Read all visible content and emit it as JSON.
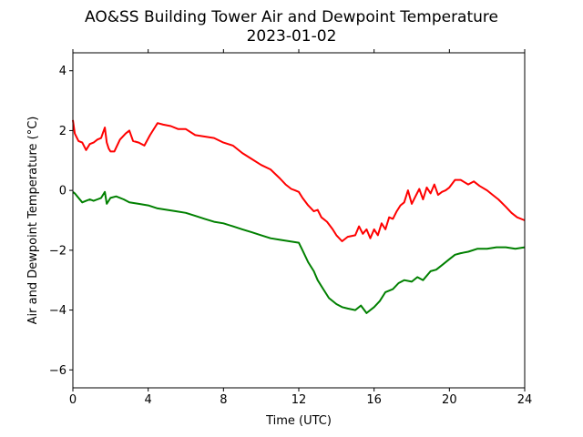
{
  "chart_data": {
    "type": "line",
    "title": "AO&SS Building Tower Air and Dewpoint Temperature",
    "subtitle": "2023-01-02",
    "xlabel": "Time (UTC)",
    "ylabel": "Air and Dewpoint Temperature (°C)",
    "xlim": [
      0,
      24
    ],
    "ylim": [
      -6.6,
      4.6
    ],
    "xticks": [
      0,
      4,
      8,
      12,
      16,
      20,
      24
    ],
    "yticks": [
      -6,
      -4,
      -2,
      0,
      2,
      4
    ],
    "ytick_labels": [
      "−6",
      "−4",
      "−2",
      "0",
      "2",
      "4"
    ],
    "grid": false,
    "series": [
      {
        "color": "#ff0000",
        "x": [
          0,
          0.1,
          0.3,
          0.5,
          0.7,
          0.9,
          1.1,
          1.3,
          1.5,
          1.7,
          1.8,
          1.9,
          2.0,
          2.2,
          2.5,
          2.8,
          3.0,
          3.2,
          3.5,
          3.8,
          4.1,
          4.4,
          4.5,
          4.8,
          5.2,
          5.6,
          6.0,
          6.5,
          7.0,
          7.5,
          8.0,
          8.5,
          9.0,
          9.5,
          10.0,
          10.5,
          11.0,
          11.3,
          11.6,
          11.8,
          12.0,
          12.2,
          12.5,
          12.8,
          13.0,
          13.2,
          13.5,
          13.8,
          14.0,
          14.3,
          14.6,
          15.0,
          15.2,
          15.4,
          15.6,
          15.8,
          16.0,
          16.2,
          16.4,
          16.6,
          16.8,
          17.0,
          17.2,
          17.4,
          17.6,
          17.8,
          18.0,
          18.2,
          18.4,
          18.6,
          18.8,
          19.0,
          19.2,
          19.4,
          19.6,
          19.8,
          20.0,
          20.3,
          20.6,
          21.0,
          21.3,
          21.6,
          22.0,
          22.3,
          22.6,
          23.0,
          23.3,
          23.6,
          24.0
        ],
        "values": [
          2.35,
          1.9,
          1.65,
          1.6,
          1.35,
          1.55,
          1.6,
          1.7,
          1.75,
          2.1,
          1.6,
          1.4,
          1.3,
          1.3,
          1.7,
          1.9,
          2.0,
          1.65,
          1.6,
          1.5,
          1.85,
          2.15,
          2.25,
          2.2,
          2.15,
          2.05,
          2.05,
          1.85,
          1.8,
          1.75,
          1.6,
          1.5,
          1.25,
          1.05,
          0.85,
          0.7,
          0.4,
          0.2,
          0.05,
          0.0,
          -0.05,
          -0.25,
          -0.5,
          -0.7,
          -0.65,
          -0.9,
          -1.05,
          -1.3,
          -1.5,
          -1.7,
          -1.55,
          -1.5,
          -1.2,
          -1.45,
          -1.3,
          -1.6,
          -1.3,
          -1.5,
          -1.1,
          -1.3,
          -0.9,
          -0.95,
          -0.7,
          -0.5,
          -0.4,
          0.0,
          -0.45,
          -0.2,
          0.05,
          -0.3,
          0.1,
          -0.1,
          0.2,
          -0.15,
          -0.05,
          0.0,
          0.1,
          0.35,
          0.35,
          0.2,
          0.3,
          0.15,
          0.0,
          -0.15,
          -0.3,
          -0.55,
          -0.75,
          -0.9,
          -1.0
        ]
      },
      {
        "color": "#008000",
        "x": [
          0,
          0.1,
          0.3,
          0.5,
          0.7,
          0.9,
          1.1,
          1.3,
          1.5,
          1.7,
          1.8,
          2.0,
          2.3,
          2.7,
          3.0,
          3.5,
          4.0,
          4.5,
          5.0,
          5.5,
          6.0,
          6.5,
          7.0,
          7.5,
          8.0,
          8.5,
          9.0,
          9.5,
          10.0,
          10.5,
          11.0,
          11.5,
          12.0,
          12.2,
          12.5,
          12.8,
          13.0,
          13.3,
          13.6,
          14.0,
          14.3,
          14.6,
          15.0,
          15.3,
          15.6,
          16.0,
          16.3,
          16.6,
          17.0,
          17.3,
          17.6,
          18.0,
          18.3,
          18.6,
          19.0,
          19.3,
          19.6,
          20.0,
          20.3,
          20.6,
          21.0,
          21.5,
          22.0,
          22.5,
          23.0,
          23.5,
          24.0
        ],
        "values": [
          -0.05,
          -0.1,
          -0.25,
          -0.4,
          -0.35,
          -0.3,
          -0.35,
          -0.3,
          -0.25,
          -0.05,
          -0.45,
          -0.25,
          -0.2,
          -0.3,
          -0.4,
          -0.45,
          -0.5,
          -0.6,
          -0.65,
          -0.7,
          -0.75,
          -0.85,
          -0.95,
          -1.05,
          -1.1,
          -1.2,
          -1.3,
          -1.4,
          -1.5,
          -1.6,
          -1.65,
          -1.7,
          -1.75,
          -2.0,
          -2.4,
          -2.7,
          -3.0,
          -3.3,
          -3.6,
          -3.8,
          -3.9,
          -3.95,
          -4.0,
          -3.85,
          -4.1,
          -3.9,
          -3.7,
          -3.4,
          -3.3,
          -3.1,
          -3.0,
          -3.05,
          -2.9,
          -3.0,
          -2.7,
          -2.65,
          -2.5,
          -2.3,
          -2.15,
          -2.1,
          -2.05,
          -1.95,
          -1.95,
          -1.9,
          -1.9,
          -1.95,
          -1.9
        ]
      }
    ]
  }
}
